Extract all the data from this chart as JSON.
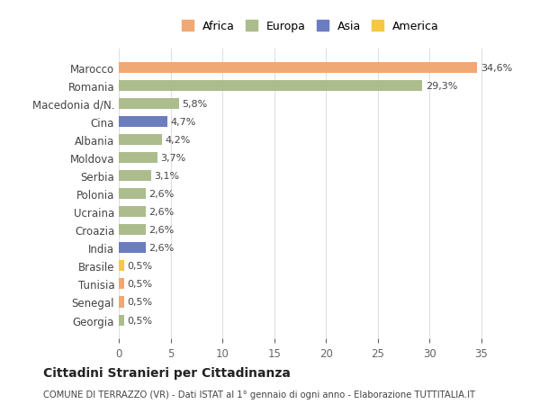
{
  "countries": [
    "Marocco",
    "Romania",
    "Macedonia d/N.",
    "Cina",
    "Albania",
    "Moldova",
    "Serbia",
    "Polonia",
    "Ucraina",
    "Croazia",
    "India",
    "Brasile",
    "Tunisia",
    "Senegal",
    "Georgia"
  ],
  "values": [
    34.6,
    29.3,
    5.8,
    4.7,
    4.2,
    3.7,
    3.1,
    2.6,
    2.6,
    2.6,
    2.6,
    0.5,
    0.5,
    0.5,
    0.5
  ],
  "labels": [
    "34,6%",
    "29,3%",
    "5,8%",
    "4,7%",
    "4,2%",
    "3,7%",
    "3,1%",
    "2,6%",
    "2,6%",
    "2,6%",
    "2,6%",
    "0,5%",
    "0,5%",
    "0,5%",
    "0,5%"
  ],
  "continents": [
    "Africa",
    "Europa",
    "Europa",
    "Asia",
    "Europa",
    "Europa",
    "Europa",
    "Europa",
    "Europa",
    "Europa",
    "Asia",
    "America",
    "Africa",
    "Africa",
    "Europa"
  ],
  "colors": {
    "Africa": "#F0A875",
    "Europa": "#ACBC8C",
    "Asia": "#6B7DBF",
    "America": "#F5C842"
  },
  "legend_order": [
    "Africa",
    "Europa",
    "Asia",
    "America"
  ],
  "legend_colors": {
    "Africa": "#F0A875",
    "Europa": "#ACBC8C",
    "Asia": "#6B7DBF",
    "America": "#F5C842"
  },
  "title": "Cittadini Stranieri per Cittadinanza",
  "subtitle": "COMUNE DI TERRAZZO (VR) - Dati ISTAT al 1° gennaio di ogni anno - Elaborazione TUTTITALIA.IT",
  "xlim": [
    0,
    37
  ],
  "xticks": [
    0,
    5,
    10,
    15,
    20,
    25,
    30,
    35
  ],
  "background_color": "#ffffff",
  "grid_color": "#e0e0e0"
}
